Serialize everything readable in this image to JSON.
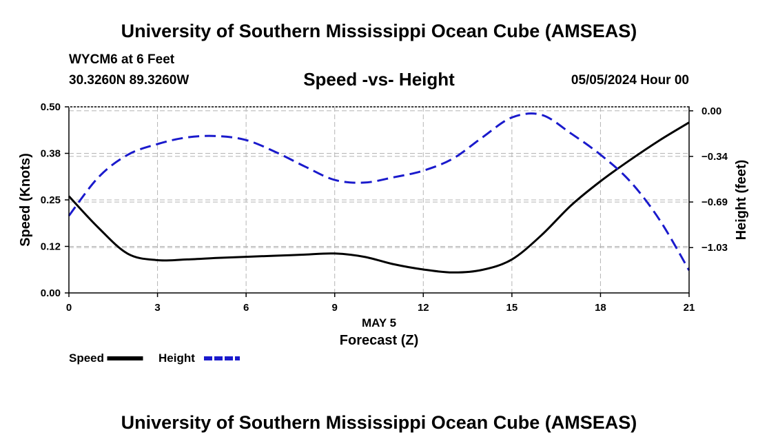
{
  "header": {
    "title": "University of Southern Mississippi Ocean Cube (AMSEAS)",
    "station": "WYCM6 at 6 Feet",
    "coords": "30.3260N  89.3260W",
    "subtitle": "Speed -vs- Height",
    "date": "05/05/2024 Hour 00"
  },
  "footer": {
    "title": "University of Southern Mississippi Ocean Cube (AMSEAS)"
  },
  "colors": {
    "speed": "#000000",
    "height": "#1a1acc",
    "grid": "#b4b4b4"
  },
  "chart_data": {
    "type": "line",
    "xlabel_line1": "MAY 5",
    "xlabel": "Forecast (Z)",
    "ylabel": "Speed (Knots)",
    "y2label": "Height (feet)",
    "xlim": [
      0,
      21
    ],
    "ylim": [
      0,
      0.5
    ],
    "y2lim": [
      -1.37,
      0.03
    ],
    "x_ticks": [
      0,
      3,
      6,
      9,
      12,
      15,
      18,
      21
    ],
    "x_tick_labels": [
      "0",
      "3",
      "6",
      "9",
      "12",
      "15",
      "18",
      "21"
    ],
    "y_ticks": [
      0,
      0.125,
      0.25,
      0.375,
      0.5
    ],
    "y_tick_labels": [
      "0.00",
      "0.12",
      "0.25",
      "0.38",
      "0.50"
    ],
    "y2_ticks": [
      0,
      -0.343,
      -0.686,
      -1.029
    ],
    "y2_tick_labels": [
      "0.00",
      "-0.34",
      "-0.69",
      "-1.03"
    ],
    "series": [
      {
        "name": "Speed",
        "axis": "left",
        "x": [
          0,
          1,
          2,
          3,
          4,
          5,
          6,
          7,
          8,
          9,
          10,
          11,
          12,
          13,
          14,
          15,
          16,
          17,
          18,
          19,
          20,
          21
        ],
        "values": [
          0.26,
          0.175,
          0.105,
          0.088,
          0.09,
          0.094,
          0.097,
          0.1,
          0.103,
          0.106,
          0.097,
          0.077,
          0.063,
          0.055,
          0.062,
          0.09,
          0.155,
          0.235,
          0.3,
          0.357,
          0.41,
          0.458
        ]
      },
      {
        "name": "Height",
        "axis": "right",
        "x": [
          0,
          1,
          2,
          3,
          4,
          5,
          6,
          7,
          8,
          9,
          10,
          11,
          12,
          13,
          14,
          15,
          16,
          17,
          18,
          19,
          20,
          21
        ],
        "values": [
          -0.79,
          -0.5,
          -0.33,
          -0.25,
          -0.2,
          -0.19,
          -0.22,
          -0.31,
          -0.42,
          -0.52,
          -0.54,
          -0.5,
          -0.45,
          -0.36,
          -0.2,
          -0.05,
          -0.03,
          -0.17,
          -0.33,
          -0.53,
          -0.82,
          -1.2
        ]
      }
    ],
    "legend": {
      "position": "bottom-left",
      "entries": [
        "Speed",
        "Height"
      ]
    }
  }
}
